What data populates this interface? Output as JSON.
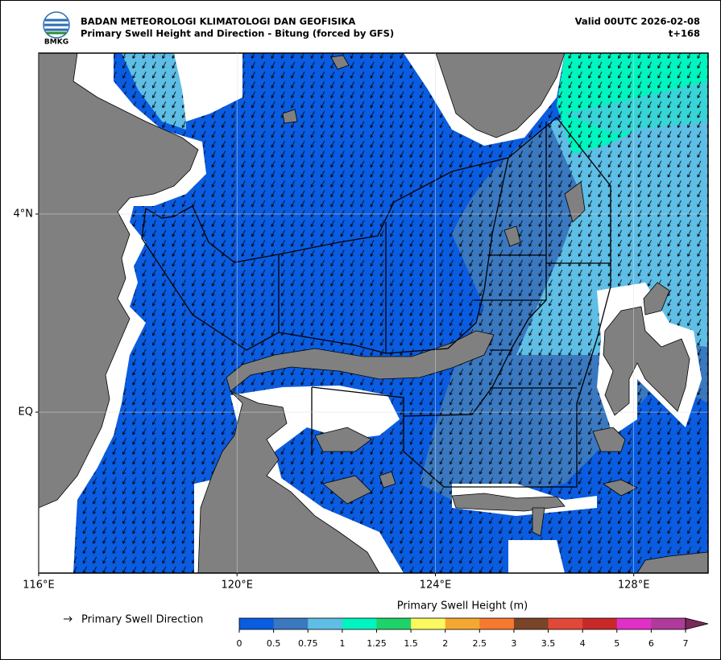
{
  "header": {
    "logo": "BMKG",
    "agency": "BADAN METEOROLOGI KLIMATOLOGI DAN GEOFISIKA",
    "title": "Primary Swell Height and Direction - Bitung (forced by GFS)",
    "valid": "Valid 00UTC 2026-02-08",
    "lead": "t+168"
  },
  "map": {
    "xlim": [
      116,
      129.5
    ],
    "ylim": [
      -3.25,
      7.25
    ],
    "xticks": [
      {
        "value": 116,
        "label": "116°E"
      },
      {
        "value": 120,
        "label": "120°E"
      },
      {
        "value": 124,
        "label": "124°E"
      },
      {
        "value": 128,
        "label": "128°E"
      }
    ],
    "yticks": [
      {
        "value": 4,
        "label": "4°N"
      },
      {
        "value": 0,
        "label": "EQ"
      }
    ],
    "grid": true
  },
  "legend": {
    "label": "Primary Swell Direction"
  },
  "colorbar": {
    "label": "Primary Swell Height (m)",
    "ticks": [
      0,
      0.5,
      0.75,
      1,
      1.25,
      1.5,
      2,
      2.5,
      3,
      3.5,
      4,
      5,
      6,
      7
    ],
    "colors": [
      "#0a5ce0",
      "#3a78c0",
      "#5ebee6",
      "#00f5c0",
      "#1ed36a",
      "#fafa60",
      "#f5a830",
      "#f57a30",
      "#7a4428",
      "#e04838",
      "#c82828",
      "#e030c8",
      "#b03a9a"
    ],
    "extend_color": "#7a2a5a"
  }
}
